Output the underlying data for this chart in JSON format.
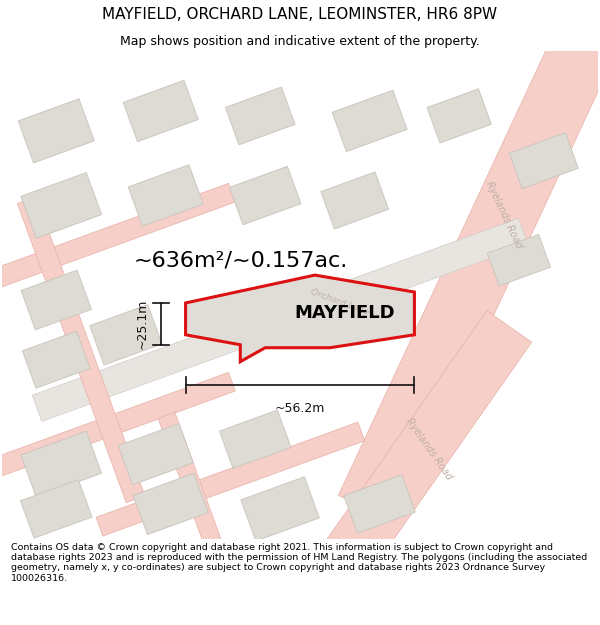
{
  "title": "MAYFIELD, ORCHARD LANE, LEOMINSTER, HR6 8PW",
  "subtitle": "Map shows position and indicative extent of the property.",
  "footer": "Contains OS data © Crown copyright and database right 2021. This information is subject to Crown copyright and database rights 2023 and is reproduced with the permission of HM Land Registry. The polygons (including the associated geometry, namely x, y co-ordinates) are subject to Crown copyright and database rights 2023 Ordnance Survey 100026316.",
  "area_label": "~636m²/~0.157ac.",
  "property_label": "MAYFIELD",
  "dim_width": "~56.2m",
  "dim_height": "~25.1m",
  "map_bg": "#f2eeea",
  "road_fill": "#f5cfc8",
  "road_edge": "#e8b0a8",
  "road_fill2": "#e8e4e0",
  "road_edge2": "#d0ccc8",
  "bld_fill": "#dedad4",
  "bld_edge": "#c8c4bc",
  "prop_fill": "#e0ddd8",
  "prop_edge": "#dd1111",
  "dim_color": "#111111",
  "road_lbl_color": "#c0b0a8",
  "title_fontsize": 11,
  "subtitle_fontsize": 9,
  "footer_fontsize": 6.8,
  "prop_pts_x": [
    175,
    270,
    330,
    415,
    415,
    330,
    270,
    200,
    200,
    175
  ],
  "prop_pts_y": [
    255,
    230,
    225,
    250,
    285,
    305,
    315,
    305,
    285,
    280
  ]
}
